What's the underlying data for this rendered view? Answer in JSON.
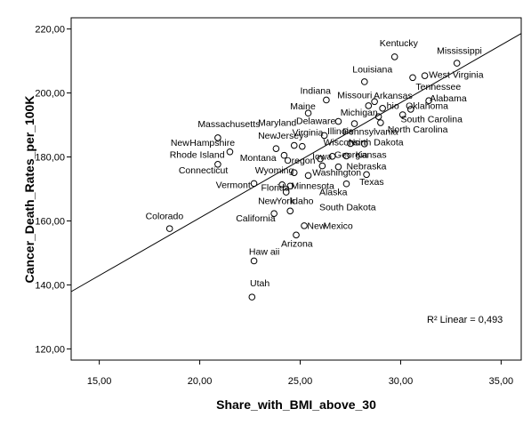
{
  "chart_data": {
    "type": "scatter",
    "xlabel": "Share_with_BMI_above_30",
    "ylabel": "Cancer_Death_Rates_per_100K",
    "xlim": [
      13.6,
      36.0
    ],
    "ylim": [
      116.5,
      223.5
    ],
    "x_ticks": [
      15,
      20,
      25,
      30,
      35
    ],
    "y_ticks": [
      120,
      140,
      160,
      180,
      200,
      220
    ],
    "x_tick_labels": [
      "15,00",
      "20,00",
      "25,00",
      "30,00",
      "35,00"
    ],
    "y_tick_labels": [
      "120,00",
      "140,00",
      "160,00",
      "180,00",
      "200,00",
      "220,00"
    ],
    "grid": false,
    "fit_line": {
      "label": "R² Linear = 0,493",
      "x": [
        13.6,
        36.0
      ],
      "y": [
        137.9,
        218.6
      ]
    },
    "points": [
      {
        "x": 29.7,
        "y": 211.3,
        "label": "Kentucky"
      },
      {
        "x": 32.8,
        "y": 209.3,
        "label": "Mississippi"
      },
      {
        "x": 28.2,
        "y": 203.5,
        "label": "Louisiana"
      },
      {
        "x": 31.2,
        "y": 205.4,
        "label": "West Virginia"
      },
      {
        "x": 30.6,
        "y": 204.8,
        "label": "Tennessee"
      },
      {
        "x": 31.4,
        "y": 197.6,
        "label": "Alabama"
      },
      {
        "x": 30.1,
        "y": 193.2,
        "label": "South Carolina"
      },
      {
        "x": 30.5,
        "y": 194.9,
        "label": "Oklahoma"
      },
      {
        "x": 29.1,
        "y": 195.2,
        "label": "Ohio"
      },
      {
        "x": 28.7,
        "y": 197.3,
        "label": "Arkansas"
      },
      {
        "x": 28.4,
        "y": 196.0,
        "label": "Missouri"
      },
      {
        "x": 28.9,
        "y": 192.6,
        "label": "Michigan"
      },
      {
        "x": 26.3,
        "y": 197.8,
        "label": "Indiana"
      },
      {
        "x": 25.4,
        "y": 193.7,
        "label": "Maine"
      },
      {
        "x": 29.0,
        "y": 190.7,
        "label": "North Carolina"
      },
      {
        "x": 26.9,
        "y": 191.1,
        "label": "Delaware"
      },
      {
        "x": 27.7,
        "y": 190.4,
        "label": "Pennsylvania"
      },
      {
        "x": 26.2,
        "y": 186.7,
        "label": "Illinois"
      },
      {
        "x": 27.5,
        "y": 184.2,
        "label": "Wisconsin"
      },
      {
        "x": 28.2,
        "y": 184.1,
        "label": "North Dakota"
      },
      {
        "x": 24.7,
        "y": 183.6,
        "label": "Virginia"
      },
      {
        "x": 25.1,
        "y": 183.3,
        "label": "Maryland"
      },
      {
        "x": 23.8,
        "y": 182.6,
        "label": "New Jersey"
      },
      {
        "x": 21.5,
        "y": 181.6,
        "label": "New Hampshire"
      },
      {
        "x": 24.2,
        "y": 180.5,
        "label": "Montana"
      },
      {
        "x": 26.0,
        "y": 179.4,
        "label": "Iowa"
      },
      {
        "x": 26.6,
        "y": 180.2,
        "label": "Georgia"
      },
      {
        "x": 27.3,
        "y": 180.3,
        "label": "Kansas"
      },
      {
        "x": 20.9,
        "y": 186.0,
        "label": "Massachusetts"
      },
      {
        "x": 20.9,
        "y": 177.7,
        "label": "Rhode Island"
      },
      {
        "x": 24.7,
        "y": 175.1,
        "label": "Oregon"
      },
      {
        "x": 26.1,
        "y": 177.2,
        "label": "Connecticut"
      },
      {
        "x": 26.9,
        "y": 176.9,
        "label": "Nebraska"
      },
      {
        "x": 25.4,
        "y": 174.2,
        "label": "Washington"
      },
      {
        "x": 28.3,
        "y": 174.5,
        "label": "Texas"
      },
      {
        "x": 22.7,
        "y": 171.7,
        "label": "Vermont"
      },
      {
        "x": 24.1,
        "y": 171.3,
        "label": "Wyoming"
      },
      {
        "x": 24.5,
        "y": 170.9,
        "label": "Florida"
      },
      {
        "x": 24.3,
        "y": 169.0,
        "label": "Minnesota"
      },
      {
        "x": 27.3,
        "y": 171.6,
        "label": "Alaska"
      },
      {
        "x": 23.7,
        "y": 162.3,
        "label": "New York"
      },
      {
        "x": 24.5,
        "y": 163.1,
        "label": "Idaho"
      },
      {
        "x": 25.2,
        "y": 158.5,
        "label": "South Dakota"
      },
      {
        "x": 24.8,
        "y": 155.6,
        "label": "New Mexico"
      },
      {
        "x": 18.5,
        "y": 157.6,
        "label": "Colorado"
      },
      {
        "x": 22.7,
        "y": 147.5,
        "label": "California"
      },
      {
        "x": 22.6,
        "y": 136.2,
        "label": "Utah"
      }
    ],
    "labels": [
      {
        "text": "Kentucky",
        "x": 28.95,
        "y": 214.6
      },
      {
        "text": "Mississippi",
        "x": 31.8,
        "y": 212.3
      },
      {
        "text": "Louisiana",
        "x": 27.6,
        "y": 206.4
      },
      {
        "text": "West Virginia",
        "x": 31.4,
        "y": 204.8
      },
      {
        "text": "Tennessee",
        "x": 30.75,
        "y": 201.0
      },
      {
        "text": "Alabama",
        "x": 31.45,
        "y": 197.4
      },
      {
        "text": "Indiana",
        "x": 25.0,
        "y": 199.8
      },
      {
        "text": "Missouri",
        "x": 26.85,
        "y": 198.3
      },
      {
        "text": "Arkansas",
        "x": 28.65,
        "y": 198.2
      },
      {
        "text": "Maine",
        "x": 24.5,
        "y": 194.9
      },
      {
        "text": "hio",
        "x": 29.3,
        "y": 195.0
      },
      {
        "text": "Oklahoma",
        "x": 30.25,
        "y": 195.0
      },
      {
        "text": "Michigan",
        "x": 27.0,
        "y": 192.9
      },
      {
        "text": "South Carolina",
        "x": 30.0,
        "y": 190.9
      },
      {
        "text": "Massachusetts",
        "x": 19.9,
        "y": 189.3
      },
      {
        "text": "Maryland",
        "x": 22.9,
        "y": 189.8
      },
      {
        "text": "Delaware",
        "x": 24.8,
        "y": 190.3
      },
      {
        "text": "North Carolina",
        "x": 29.35,
        "y": 187.7
      },
      {
        "text": "Virginia",
        "x": 24.6,
        "y": 186.7
      },
      {
        "text": "Illinois",
        "x": 26.35,
        "y": 187.1
      },
      {
        "text": "Pennsylvania",
        "x": 27.1,
        "y": 186.9
      },
      {
        "text": "New",
        "x": 22.9,
        "y": 185.7
      },
      {
        "text": "Jersey",
        "x": 23.8,
        "y": 185.7
      },
      {
        "text": "New",
        "x": 18.55,
        "y": 183.5
      },
      {
        "text": "Hampshire",
        "x": 19.5,
        "y": 183.5
      },
      {
        "text": "Wisconsin",
        "x": 26.15,
        "y": 183.6
      },
      {
        "text": "North Dakota",
        "x": 27.4,
        "y": 183.6
      },
      {
        "text": "Rhode Island",
        "x": 18.5,
        "y": 179.7
      },
      {
        "text": "Georgia",
        "x": 26.7,
        "y": 179.7
      },
      {
        "text": "Kansas",
        "x": 27.75,
        "y": 179.7
      },
      {
        "text": "Montana",
        "x": 22.0,
        "y": 178.8
      },
      {
        "text": "Iowa",
        "x": 25.6,
        "y": 179.2
      },
      {
        "text": "Oregon",
        "x": 24.2,
        "y": 177.9
      },
      {
        "text": "Nebraska",
        "x": 27.3,
        "y": 176.1
      },
      {
        "text": "Connecticut",
        "x": 18.95,
        "y": 174.8
      },
      {
        "text": "Wyoming",
        "x": 22.75,
        "y": 174.8
      },
      {
        "text": "Washington",
        "x": 25.6,
        "y": 174.1
      },
      {
        "text": "Texas",
        "x": 27.95,
        "y": 171.2
      },
      {
        "text": "Vermont",
        "x": 20.8,
        "y": 170.3
      },
      {
        "text": "Florida",
        "x": 23.05,
        "y": 169.4
      },
      {
        "text": "Minnesota",
        "x": 24.55,
        "y": 170.0
      },
      {
        "text": "Alaska",
        "x": 25.95,
        "y": 168.1
      },
      {
        "text": "New",
        "x": 22.9,
        "y": 165.3
      },
      {
        "text": "York",
        "x": 23.8,
        "y": 165.3
      },
      {
        "text": "Idaho",
        "x": 24.5,
        "y": 165.3
      },
      {
        "text": "South Dakota",
        "x": 25.95,
        "y": 163.3
      },
      {
        "text": "California",
        "x": 21.8,
        "y": 159.8
      },
      {
        "text": "Colorado",
        "x": 17.3,
        "y": 160.6
      },
      {
        "text": "New",
        "x": 25.35,
        "y": 157.5
      },
      {
        "text": "Mexico",
        "x": 26.15,
        "y": 157.5
      },
      {
        "text": "Arizona",
        "x": 24.05,
        "y": 151.9
      },
      {
        "text": "Haw aii",
        "x": 22.45,
        "y": 149.5
      },
      {
        "text": "Utah",
        "x": 22.5,
        "y": 139.5
      }
    ]
  }
}
